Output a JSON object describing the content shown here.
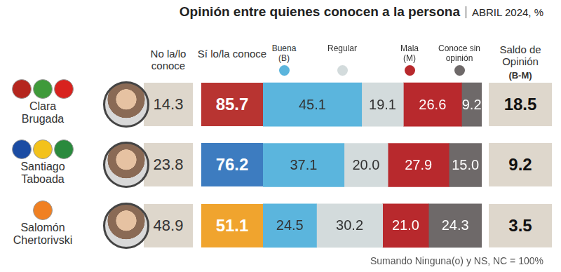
{
  "chart_data": {
    "type": "bar",
    "orientation": "horizontal",
    "stacked": true,
    "data_labels": true,
    "tick_labels": false,
    "grid": false,
    "legend": "top",
    "title": "Opinión entre quienes conocen a la persona",
    "subtitle": "ABRIL 2024, %",
    "categories": [
      "Clara Brugada",
      "Santiago Taboada",
      "Salomón Chertorivski"
    ],
    "xlim": [
      0,
      100
    ],
    "series": [
      {
        "name": "Buena (B)",
        "color": "#5bb5dd",
        "values": [
          45.1,
          37.1,
          24.5
        ],
        "value_labels": [
          "45.1",
          "37.1",
          "24.5"
        ]
      },
      {
        "name": "Regular",
        "color": "#d3dbdc",
        "values": [
          19.1,
          20.0,
          30.2
        ],
        "value_labels": [
          "19.1",
          "20.0",
          "30.2"
        ]
      },
      {
        "name": "Mala (M)",
        "color": "#b8292d",
        "values": [
          26.6,
          27.9,
          21.0
        ],
        "value_labels": [
          "26.6",
          "27.9",
          "21.0"
        ]
      },
      {
        "name": "Conoce sin opinión",
        "color": "#6e6969",
        "values": [
          9.2,
          15.0,
          24.3
        ],
        "value_labels": [
          "9.2",
          "15.0",
          "24.3"
        ]
      }
    ],
    "columns": [
      {
        "header": "No la/lo conoce",
        "color": "#ded7cc",
        "values": [
          14.3,
          23.8,
          48.9
        ],
        "value_labels": [
          "14.3",
          "23.8",
          "48.9"
        ]
      },
      {
        "header": "Sí lo/la conoce",
        "colors": [
          "#b83431",
          "#3d7cc0",
          "#f0a42e"
        ],
        "values": [
          85.7,
          76.2,
          51.1
        ],
        "value_labels": [
          "85.7",
          "76.2",
          "51.1"
        ]
      },
      {
        "header": "Saldo de Opinión",
        "header_note": "(B-M)",
        "color": "#ded7cc",
        "values": [
          18.5,
          9.2,
          3.5
        ],
        "value_labels": [
          "18.5",
          "9.2",
          "3.5"
        ]
      }
    ],
    "note": "Sumando Ninguna(o) y NS, NC = 100%"
  }
}
